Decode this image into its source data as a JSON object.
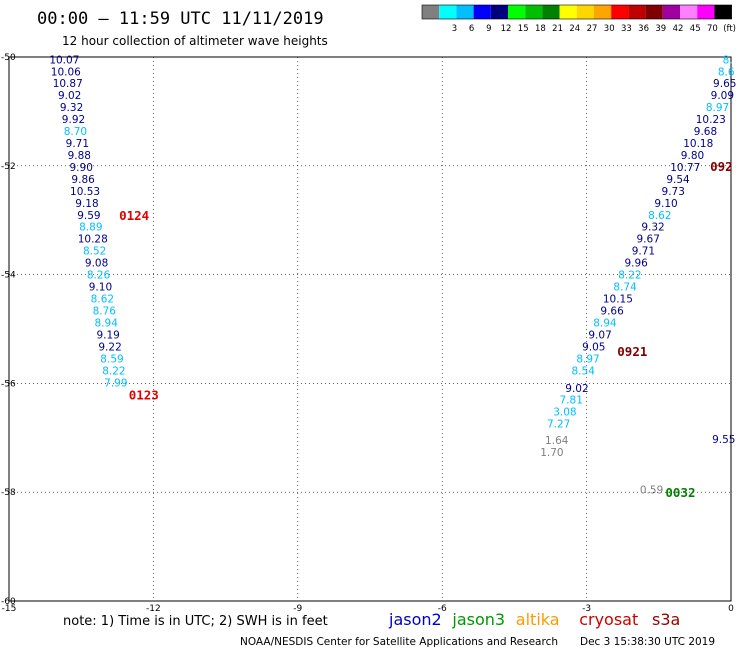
{
  "header": {
    "title": "00:00 – 11:59 UTC 11/11/2019",
    "subtitle": "12 hour collection of altimeter wave heights"
  },
  "legend": {
    "swatches": [
      {
        "color": "#808080",
        "label": ""
      },
      {
        "color": "#00ffff",
        "label": "3"
      },
      {
        "color": "#00bfff",
        "label": "6"
      },
      {
        "color": "#0000ff",
        "label": "9"
      },
      {
        "color": "#00007f",
        "label": "12"
      },
      {
        "color": "#00ff00",
        "label": "15"
      },
      {
        "color": "#00bf00",
        "label": "18"
      },
      {
        "color": "#008000",
        "label": "21"
      },
      {
        "color": "#ffff00",
        "label": "24"
      },
      {
        "color": "#ffd700",
        "label": "27"
      },
      {
        "color": "#ffa500",
        "label": "30"
      },
      {
        "color": "#ff0000",
        "label": "33"
      },
      {
        "color": "#c00000",
        "label": "36"
      },
      {
        "color": "#800000",
        "label": "39"
      },
      {
        "color": "#a000a0",
        "label": "42"
      },
      {
        "color": "#ff80ff",
        "label": "45"
      },
      {
        "color": "#ff00ff",
        "label": "70"
      },
      {
        "color": "#000000",
        "label": "(ft)"
      }
    ]
  },
  "footer": {
    "note": "note:  1) Time is in UTC;  2) SWH is in feet",
    "satellites": [
      {
        "name": "jason2",
        "color": "#0000cc"
      },
      {
        "name": "jason3",
        "color": "#009900"
      },
      {
        "name": "altika",
        "color": "#ff9900"
      },
      {
        "name": "cryosat",
        "color": "#cc0000"
      },
      {
        "name": "s3a",
        "color": "#990000"
      }
    ],
    "credit": "NOAA/NESDIS Center for Satellite Applications and Research",
    "timestamp": "Dec  3 15:38:30 UTC 2019"
  },
  "chart_data": {
    "type": "scatter",
    "xlim": [
      -15,
      0
    ],
    "ylim": [
      -60,
      -50
    ],
    "x_ticks": [
      "-15",
      "-12",
      "-9",
      "-6",
      "-3",
      "0"
    ],
    "y_ticks": [
      "-50",
      "-52",
      "-54",
      "-56",
      "-58",
      "-60"
    ],
    "grid": true,
    "passes": [
      {
        "id": "0124",
        "x": -12.4,
        "y": -52.9,
        "color": "#e00000"
      },
      {
        "id": "0123",
        "x": -12.2,
        "y": -56.2,
        "color": "#e00000"
      },
      {
        "id": "0921",
        "x": -2.05,
        "y": -55.4,
        "color": "#800000"
      },
      {
        "id": "092",
        "x": -0.2,
        "y": -52.0,
        "color": "#800000"
      },
      {
        "id": "0032",
        "x": -1.05,
        "y": -58.0,
        "color": "#008000"
      }
    ],
    "series": [
      {
        "name": "0124",
        "points": [
          {
            "x": -13.85,
            "y": -50.05,
            "v": "10.07",
            "c": "#00008b"
          },
          {
            "x": -13.82,
            "y": -50.27,
            "v": "10.06",
            "c": "#00008b"
          },
          {
            "x": -13.78,
            "y": -50.48,
            "v": "10.87",
            "c": "#00008b"
          },
          {
            "x": -13.74,
            "y": -50.7,
            "v": "9.02",
            "c": "#00008b"
          },
          {
            "x": -13.7,
            "y": -50.92,
            "v": "9.32",
            "c": "#00008b"
          },
          {
            "x": -13.66,
            "y": -51.14,
            "v": "9.92",
            "c": "#00008b"
          },
          {
            "x": -13.62,
            "y": -51.36,
            "v": "8.70",
            "c": "#00bfff"
          },
          {
            "x": -13.58,
            "y": -51.58,
            "v": "9.71",
            "c": "#00008b"
          },
          {
            "x": -13.54,
            "y": -51.8,
            "v": "9.88",
            "c": "#00008b"
          },
          {
            "x": -13.5,
            "y": -52.02,
            "v": "9.90",
            "c": "#00008b"
          },
          {
            "x": -13.46,
            "y": -52.24,
            "v": "9.86",
            "c": "#00008b"
          },
          {
            "x": -13.42,
            "y": -52.46,
            "v": "10.53",
            "c": "#00008b"
          },
          {
            "x": -13.38,
            "y": -52.68,
            "v": "9.18",
            "c": "#00008b"
          },
          {
            "x": -13.34,
            "y": -52.9,
            "v": "9.59",
            "c": "#00008b"
          },
          {
            "x": -13.3,
            "y": -53.12,
            "v": "8.89",
            "c": "#00bfff"
          },
          {
            "x": -13.26,
            "y": -53.34,
            "v": "10.28",
            "c": "#00008b"
          },
          {
            "x": -13.22,
            "y": -53.56,
            "v": "8.52",
            "c": "#00bfff"
          },
          {
            "x": -13.18,
            "y": -53.78,
            "v": "9.08",
            "c": "#00008b"
          },
          {
            "x": -13.14,
            "y": -54.0,
            "v": "8.26",
            "c": "#00bfff"
          },
          {
            "x": -13.1,
            "y": -54.22,
            "v": "9.10",
            "c": "#00008b"
          },
          {
            "x": -13.06,
            "y": -54.44,
            "v": "8.62",
            "c": "#00bfff"
          },
          {
            "x": -13.02,
            "y": -54.66,
            "v": "8.76",
            "c": "#00bfff"
          },
          {
            "x": -12.98,
            "y": -54.88,
            "v": "8.94",
            "c": "#00bfff"
          },
          {
            "x": -12.94,
            "y": -55.1,
            "v": "9.19",
            "c": "#00008b"
          },
          {
            "x": -12.9,
            "y": -55.32,
            "v": "9.22",
            "c": "#00008b"
          },
          {
            "x": -12.86,
            "y": -55.54,
            "v": "8.59",
            "c": "#00bfff"
          },
          {
            "x": -12.82,
            "y": -55.76,
            "v": "8.22",
            "c": "#00bfff"
          },
          {
            "x": -12.78,
            "y": -55.98,
            "v": "7.99",
            "c": "#00bfff"
          }
        ]
      },
      {
        "name": "0921",
        "points": [
          {
            "x": -0.07,
            "y": -50.05,
            "v": "8.",
            "c": "#00bfff"
          },
          {
            "x": -0.1,
            "y": -50.27,
            "v": "8.6",
            "c": "#00bfff"
          },
          {
            "x": -0.13,
            "y": -50.48,
            "v": "9.65",
            "c": "#00008b"
          },
          {
            "x": -0.18,
            "y": -50.7,
            "v": "9.09",
            "c": "#00008b"
          },
          {
            "x": -0.28,
            "y": -50.92,
            "v": "8.97",
            "c": "#00bfff"
          },
          {
            "x": -0.42,
            "y": -51.14,
            "v": "10.23",
            "c": "#00008b"
          },
          {
            "x": -0.53,
            "y": -51.36,
            "v": "9.68",
            "c": "#00008b"
          },
          {
            "x": -0.68,
            "y": -51.58,
            "v": "10.18",
            "c": "#00008b"
          },
          {
            "x": -0.8,
            "y": -51.8,
            "v": "9.80",
            "c": "#00008b"
          },
          {
            "x": -0.95,
            "y": -52.02,
            "v": "10.77",
            "c": "#00008b"
          },
          {
            "x": -1.1,
            "y": -52.24,
            "v": "9.54",
            "c": "#00008b"
          },
          {
            "x": -1.2,
            "y": -52.46,
            "v": "9.73",
            "c": "#00008b"
          },
          {
            "x": -1.35,
            "y": -52.68,
            "v": "9.10",
            "c": "#00008b"
          },
          {
            "x": -1.48,
            "y": -52.9,
            "v": "8.62",
            "c": "#00bfff"
          },
          {
            "x": -1.62,
            "y": -53.12,
            "v": "9.32",
            "c": "#00008b"
          },
          {
            "x": -1.72,
            "y": -53.34,
            "v": "9.67",
            "c": "#00008b"
          },
          {
            "x": -1.82,
            "y": -53.56,
            "v": "9.71",
            "c": "#00008b"
          },
          {
            "x": -1.97,
            "y": -53.78,
            "v": "9.96",
            "c": "#00008b"
          },
          {
            "x": -2.1,
            "y": -54.0,
            "v": "8.22",
            "c": "#00bfff"
          },
          {
            "x": -2.2,
            "y": -54.22,
            "v": "8.74",
            "c": "#00bfff"
          },
          {
            "x": -2.35,
            "y": -54.44,
            "v": "10.15",
            "c": "#00008b"
          },
          {
            "x": -2.47,
            "y": -54.66,
            "v": "9.66",
            "c": "#00008b"
          },
          {
            "x": -2.62,
            "y": -54.88,
            "v": "8.94",
            "c": "#00bfff"
          },
          {
            "x": -2.72,
            "y": -55.1,
            "v": "9.07",
            "c": "#00008b"
          },
          {
            "x": -2.85,
            "y": -55.32,
            "v": "9.05",
            "c": "#00008b"
          },
          {
            "x": -2.97,
            "y": -55.54,
            "v": "8.97",
            "c": "#00bfff"
          },
          {
            "x": -3.07,
            "y": -55.76,
            "v": "8.54",
            "c": "#00bfff"
          },
          {
            "x": -3.2,
            "y": -56.08,
            "v": "9.02",
            "c": "#00008b"
          },
          {
            "x": -3.32,
            "y": -56.3,
            "v": "7.81",
            "c": "#00bfff"
          },
          {
            "x": -3.45,
            "y": -56.52,
            "v": "3.08",
            "c": "#00bfff"
          },
          {
            "x": -3.58,
            "y": -56.74,
            "v": "7.27",
            "c": "#00bfff"
          },
          {
            "x": -3.62,
            "y": -57.04,
            "v": "1.64",
            "c": "#808080"
          },
          {
            "x": -3.72,
            "y": -57.26,
            "v": "1.70",
            "c": "#808080"
          }
        ]
      },
      {
        "name": "0032",
        "points": [
          {
            "x": -1.65,
            "y": -57.95,
            "v": "0.59",
            "c": "#808080"
          },
          {
            "x": -0.15,
            "y": -57.02,
            "v": "9.55",
            "c": "#00008b"
          }
        ]
      }
    ]
  }
}
